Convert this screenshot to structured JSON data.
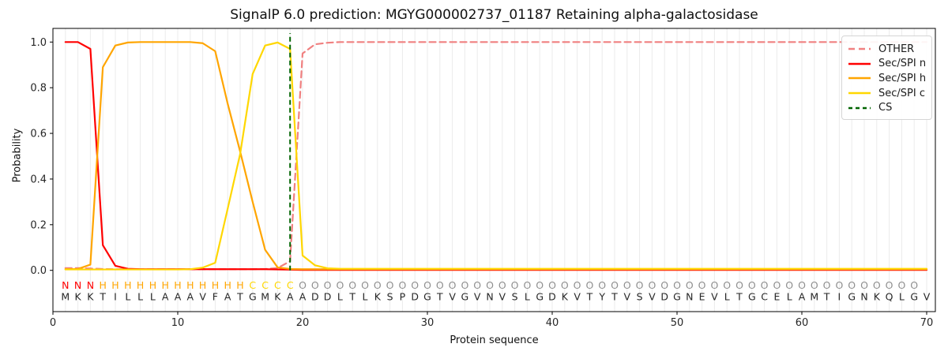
{
  "title": "SignalP 6.0 prediction: MGYG000002737_01187 Retaining alpha-galactosidase",
  "legend": [
    {
      "label": "OTHER",
      "color": "#f08080",
      "dash": "8,5"
    },
    {
      "label": "Sec/SPI n",
      "color": "#ff0000",
      "dash": null
    },
    {
      "label": "Sec/SPI h",
      "color": "#ffa500",
      "dash": null
    },
    {
      "label": "Sec/SPI c",
      "color": "#ffd700",
      "dash": null
    },
    {
      "label": "CS",
      "color": "#006400",
      "dash": "5,4"
    }
  ],
  "chart_data": {
    "type": "line",
    "title": "SignalP 6.0 prediction: MGYG000002737_01187 Retaining alpha-galactosidase",
    "xlabel": "Protein sequence",
    "ylabel": "Probability",
    "x_start": 1,
    "x_ticks": [
      0,
      10,
      20,
      30,
      40,
      50,
      60,
      70
    ],
    "y_ticks": [
      "0.0",
      "0.2",
      "0.4",
      "0.6",
      "0.8",
      "1.0"
    ],
    "xlim": [
      0,
      70.7
    ],
    "ylim": [
      -0.18,
      1.06
    ],
    "grid": "vertical-per-residue",
    "legend_position": "upper right",
    "cs_position": 19,
    "cs_color": "#006400",
    "series": [
      {
        "name": "OTHER",
        "color": "#f08080",
        "dash": "8,5",
        "values": [
          0.01,
          0.01,
          0.008,
          0.006,
          0.005,
          0.005,
          0.005,
          0.005,
          0.005,
          0.005,
          0.005,
          0.005,
          0.005,
          0.005,
          0.005,
          0.005,
          0.006,
          0.01,
          0.04,
          0.95,
          0.99,
          0.997,
          1.0,
          1.0,
          1.0,
          1.0,
          1.0,
          1.0,
          1.0,
          1.0,
          1.0,
          1.0,
          1.0,
          1.0,
          1.0,
          1.0,
          1.0,
          1.0,
          1.0,
          1.0,
          1.0,
          1.0,
          1.0,
          1.0,
          1.0,
          1.0,
          1.0,
          1.0,
          1.0,
          1.0,
          1.0,
          1.0,
          1.0,
          1.0,
          1.0,
          1.0,
          1.0,
          1.0,
          1.0,
          1.0,
          1.0,
          1.0,
          1.0,
          1.0,
          1.0,
          1.0,
          1.0,
          1.0,
          1.0,
          1.0
        ]
      },
      {
        "name": "Sec/SPI n",
        "color": "#ff0000",
        "dash": null,
        "values": [
          1.0,
          1.0,
          0.97,
          0.11,
          0.02,
          0.007,
          0.005,
          0.005,
          0.005,
          0.005,
          0.005,
          0.005,
          0.005,
          0.005,
          0.005,
          0.005,
          0.005,
          0.004,
          0.003,
          0.002,
          0.002,
          0.002,
          0.002,
          0.002,
          0.002,
          0.002,
          0.002,
          0.002,
          0.002,
          0.002,
          0.002,
          0.002,
          0.002,
          0.002,
          0.002,
          0.002,
          0.002,
          0.002,
          0.002,
          0.002,
          0.002,
          0.002,
          0.002,
          0.002,
          0.002,
          0.002,
          0.002,
          0.002,
          0.002,
          0.002,
          0.002,
          0.002,
          0.002,
          0.002,
          0.002,
          0.002,
          0.002,
          0.002,
          0.002,
          0.002,
          0.002,
          0.002,
          0.002,
          0.002,
          0.002,
          0.002,
          0.002,
          0.002,
          0.002,
          0.002
        ]
      },
      {
        "name": "Sec/SPI h",
        "color": "#ffa500",
        "dash": null,
        "values": [
          0.005,
          0.006,
          0.025,
          0.89,
          0.985,
          0.998,
          1.0,
          1.0,
          1.0,
          1.0,
          1.0,
          0.995,
          0.96,
          0.73,
          0.52,
          0.3,
          0.09,
          0.013,
          0.006,
          0.005,
          0.005,
          0.005,
          0.005,
          0.005,
          0.005,
          0.005,
          0.005,
          0.005,
          0.005,
          0.005,
          0.005,
          0.005,
          0.005,
          0.005,
          0.005,
          0.005,
          0.005,
          0.005,
          0.005,
          0.005,
          0.005,
          0.005,
          0.005,
          0.005,
          0.005,
          0.005,
          0.005,
          0.005,
          0.005,
          0.005,
          0.005,
          0.005,
          0.005,
          0.005,
          0.005,
          0.005,
          0.005,
          0.005,
          0.005,
          0.005,
          0.005,
          0.005,
          0.005,
          0.005,
          0.005,
          0.005,
          0.005,
          0.005,
          0.005,
          0.005
        ]
      },
      {
        "name": "Sec/SPI c",
        "color": "#ffd700",
        "dash": null,
        "values": [
          0.004,
          0.004,
          0.004,
          0.004,
          0.004,
          0.004,
          0.004,
          0.004,
          0.004,
          0.004,
          0.005,
          0.012,
          0.033,
          0.27,
          0.51,
          0.86,
          0.985,
          0.998,
          0.97,
          0.065,
          0.022,
          0.009,
          0.007,
          0.007,
          0.007,
          0.007,
          0.007,
          0.007,
          0.007,
          0.007,
          0.007,
          0.007,
          0.007,
          0.007,
          0.007,
          0.007,
          0.007,
          0.007,
          0.007,
          0.007,
          0.007,
          0.007,
          0.007,
          0.007,
          0.007,
          0.007,
          0.007,
          0.007,
          0.007,
          0.007,
          0.007,
          0.007,
          0.007,
          0.007,
          0.007,
          0.007,
          0.007,
          0.007,
          0.007,
          0.007,
          0.007,
          0.007,
          0.007,
          0.007,
          0.007,
          0.007,
          0.007,
          0.007,
          0.007,
          0.007
        ]
      }
    ],
    "sequence_track": {
      "residues": "MKKTILLLAAAVFATGMKAADDLTLKSPDGTVGVNVSLGDKVTYTVSVDGNEVLTGCELAMTIGNKQLGV",
      "region_labels": "NNNHHHHHHHHHHHHCCCCOOOOOOOOOOOOOOOOOOOOOOOOOOOOOOOOOOOOOOOOOOOOOOOOOO",
      "label_colors": {
        "N": "#ff0000",
        "H": "#ffa500",
        "C": "#ffd700",
        "O": "#8f8f8f"
      },
      "residue_color": "#262626"
    }
  }
}
